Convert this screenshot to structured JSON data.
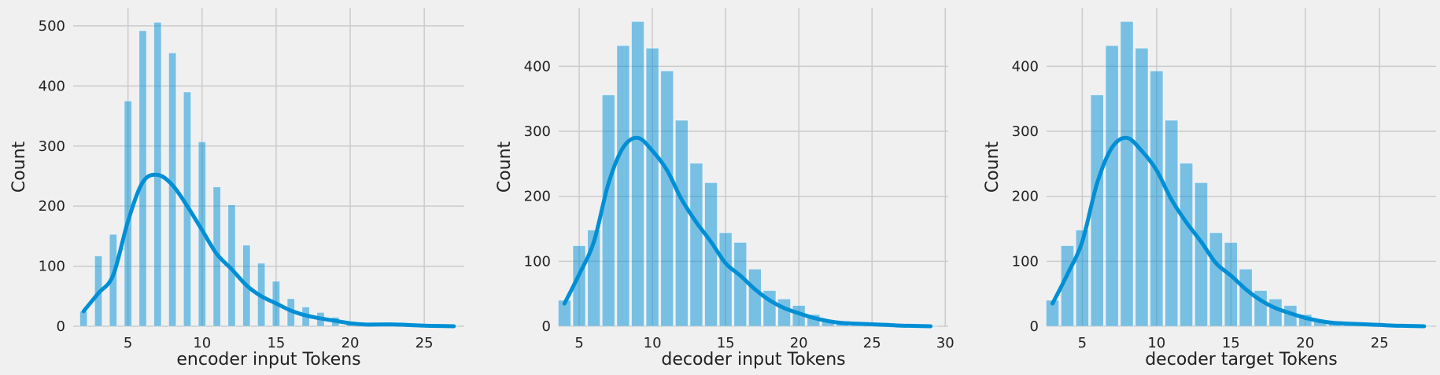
{
  "style": {
    "background": "#f0f0f0",
    "grid_color": "#cbcbcb",
    "bar_color": "#008fd5",
    "bar_alpha": 0.5,
    "kde_color": "#008fd5"
  },
  "chart_data": [
    {
      "type": "bar",
      "xlabel": "encoder input Tokens",
      "ylabel": "Count",
      "xlim": [
        1.3,
        27.7
      ],
      "ylim": [
        0,
        530
      ],
      "xticks": [
        5,
        10,
        15,
        20,
        25
      ],
      "yticks": [
        0,
        100,
        200,
        300,
        400,
        500
      ],
      "grid": true,
      "bar_width": 0.5,
      "bars": [
        {
          "x": 2,
          "count": 25
        },
        {
          "x": 3,
          "count": 117
        },
        {
          "x": 4,
          "count": 153
        },
        {
          "x": 5,
          "count": 375
        },
        {
          "x": 6,
          "count": 492
        },
        {
          "x": 7,
          "count": 506
        },
        {
          "x": 8,
          "count": 455
        },
        {
          "x": 9,
          "count": 390
        },
        {
          "x": 10,
          "count": 307
        },
        {
          "x": 11,
          "count": 232
        },
        {
          "x": 12,
          "count": 202
        },
        {
          "x": 13,
          "count": 135
        },
        {
          "x": 14,
          "count": 105
        },
        {
          "x": 15,
          "count": 75
        },
        {
          "x": 16,
          "count": 46
        },
        {
          "x": 17,
          "count": 32
        },
        {
          "x": 18,
          "count": 23
        },
        {
          "x": 19,
          "count": 15
        },
        {
          "x": 20,
          "count": 7
        },
        {
          "x": 21,
          "count": 3
        },
        {
          "x": 22,
          "count": 2
        },
        {
          "x": 23,
          "count": 2
        },
        {
          "x": 24,
          "count": 1
        },
        {
          "x": 25,
          "count": 1
        },
        {
          "x": 26,
          "count": 1
        },
        {
          "x": 27,
          "count": 1
        }
      ],
      "kde": [
        [
          2,
          25
        ],
        [
          3,
          55
        ],
        [
          4,
          85
        ],
        [
          5,
          175
        ],
        [
          6,
          240
        ],
        [
          7,
          252
        ],
        [
          8,
          235
        ],
        [
          9,
          200
        ],
        [
          10,
          160
        ],
        [
          11,
          120
        ],
        [
          12,
          95
        ],
        [
          13,
          68
        ],
        [
          14,
          50
        ],
        [
          15,
          38
        ],
        [
          16,
          26
        ],
        [
          17,
          18
        ],
        [
          18,
          13
        ],
        [
          19,
          9
        ],
        [
          20,
          5
        ],
        [
          21,
          3
        ],
        [
          22,
          3
        ],
        [
          23,
          3
        ],
        [
          24,
          2
        ],
        [
          25,
          1
        ],
        [
          26,
          0.5
        ],
        [
          27,
          0
        ]
      ]
    },
    {
      "type": "bar",
      "xlabel": "decoder input Tokens",
      "ylabel": "Count",
      "xlim": [
        3.6,
        30.2
      ],
      "ylim": [
        0,
        490
      ],
      "xticks": [
        5,
        10,
        15,
        20,
        25,
        30
      ],
      "yticks": [
        0,
        100,
        200,
        300,
        400
      ],
      "grid": true,
      "bar_width": 0.86,
      "bars": [
        {
          "x": 4,
          "count": 40
        },
        {
          "x": 5,
          "count": 124
        },
        {
          "x": 6,
          "count": 148
        },
        {
          "x": 7,
          "count": 356
        },
        {
          "x": 8,
          "count": 432
        },
        {
          "x": 9,
          "count": 469
        },
        {
          "x": 10,
          "count": 428
        },
        {
          "x": 11,
          "count": 393
        },
        {
          "x": 12,
          "count": 317
        },
        {
          "x": 13,
          "count": 251
        },
        {
          "x": 14,
          "count": 221
        },
        {
          "x": 15,
          "count": 144
        },
        {
          "x": 16,
          "count": 129
        },
        {
          "x": 17,
          "count": 88
        },
        {
          "x": 18,
          "count": 55
        },
        {
          "x": 19,
          "count": 42
        },
        {
          "x": 20,
          "count": 32
        },
        {
          "x": 21,
          "count": 18
        },
        {
          "x": 22,
          "count": 8
        },
        {
          "x": 23,
          "count": 4
        },
        {
          "x": 24,
          "count": 3
        },
        {
          "x": 25,
          "count": 2
        },
        {
          "x": 26,
          "count": 2
        },
        {
          "x": 27,
          "count": 1
        },
        {
          "x": 28,
          "count": 1
        },
        {
          "x": 29,
          "count": 1
        }
      ],
      "kde": [
        [
          4,
          35
        ],
        [
          5,
          80
        ],
        [
          6,
          130
        ],
        [
          7,
          220
        ],
        [
          8,
          275
        ],
        [
          9,
          290
        ],
        [
          10,
          270
        ],
        [
          11,
          240
        ],
        [
          12,
          195
        ],
        [
          13,
          160
        ],
        [
          14,
          130
        ],
        [
          15,
          97
        ],
        [
          16,
          78
        ],
        [
          17,
          57
        ],
        [
          18,
          40
        ],
        [
          19,
          28
        ],
        [
          20,
          20
        ],
        [
          21,
          13
        ],
        [
          22,
          8
        ],
        [
          23,
          5
        ],
        [
          24,
          4
        ],
        [
          25,
          3
        ],
        [
          26,
          2
        ],
        [
          27,
          1
        ],
        [
          28,
          0.5
        ],
        [
          29,
          0
        ]
      ]
    },
    {
      "type": "bar",
      "xlabel": "decoder target Tokens",
      "ylabel": "Count",
      "xlim": [
        2.6,
        28.8
      ],
      "ylim": [
        0,
        490
      ],
      "xticks": [
        5,
        10,
        15,
        20,
        25
      ],
      "yticks": [
        0,
        100,
        200,
        300,
        400
      ],
      "grid": true,
      "bar_width": 0.86,
      "bars": [
        {
          "x": 3,
          "count": 40
        },
        {
          "x": 4,
          "count": 124
        },
        {
          "x": 5,
          "count": 148
        },
        {
          "x": 6,
          "count": 356
        },
        {
          "x": 7,
          "count": 432
        },
        {
          "x": 8,
          "count": 469
        },
        {
          "x": 9,
          "count": 428
        },
        {
          "x": 10,
          "count": 393
        },
        {
          "x": 11,
          "count": 317
        },
        {
          "x": 12,
          "count": 251
        },
        {
          "x": 13,
          "count": 221
        },
        {
          "x": 14,
          "count": 144
        },
        {
          "x": 15,
          "count": 129
        },
        {
          "x": 16,
          "count": 88
        },
        {
          "x": 17,
          "count": 55
        },
        {
          "x": 18,
          "count": 42
        },
        {
          "x": 19,
          "count": 32
        },
        {
          "x": 20,
          "count": 18
        },
        {
          "x": 21,
          "count": 8
        },
        {
          "x": 22,
          "count": 4
        },
        {
          "x": 23,
          "count": 3
        },
        {
          "x": 24,
          "count": 2
        },
        {
          "x": 25,
          "count": 2
        },
        {
          "x": 26,
          "count": 1
        },
        {
          "x": 27,
          "count": 1
        },
        {
          "x": 28,
          "count": 1
        }
      ],
      "kde": [
        [
          3,
          35
        ],
        [
          4,
          80
        ],
        [
          5,
          130
        ],
        [
          6,
          220
        ],
        [
          7,
          275
        ],
        [
          8,
          290
        ],
        [
          9,
          270
        ],
        [
          10,
          240
        ],
        [
          11,
          195
        ],
        [
          12,
          160
        ],
        [
          13,
          130
        ],
        [
          14,
          97
        ],
        [
          15,
          78
        ],
        [
          16,
          57
        ],
        [
          17,
          40
        ],
        [
          18,
          28
        ],
        [
          19,
          20
        ],
        [
          20,
          13
        ],
        [
          21,
          8
        ],
        [
          22,
          5
        ],
        [
          23,
          4
        ],
        [
          24,
          3
        ],
        [
          25,
          2
        ],
        [
          26,
          1
        ],
        [
          27,
          0.5
        ],
        [
          28,
          0
        ]
      ]
    }
  ]
}
